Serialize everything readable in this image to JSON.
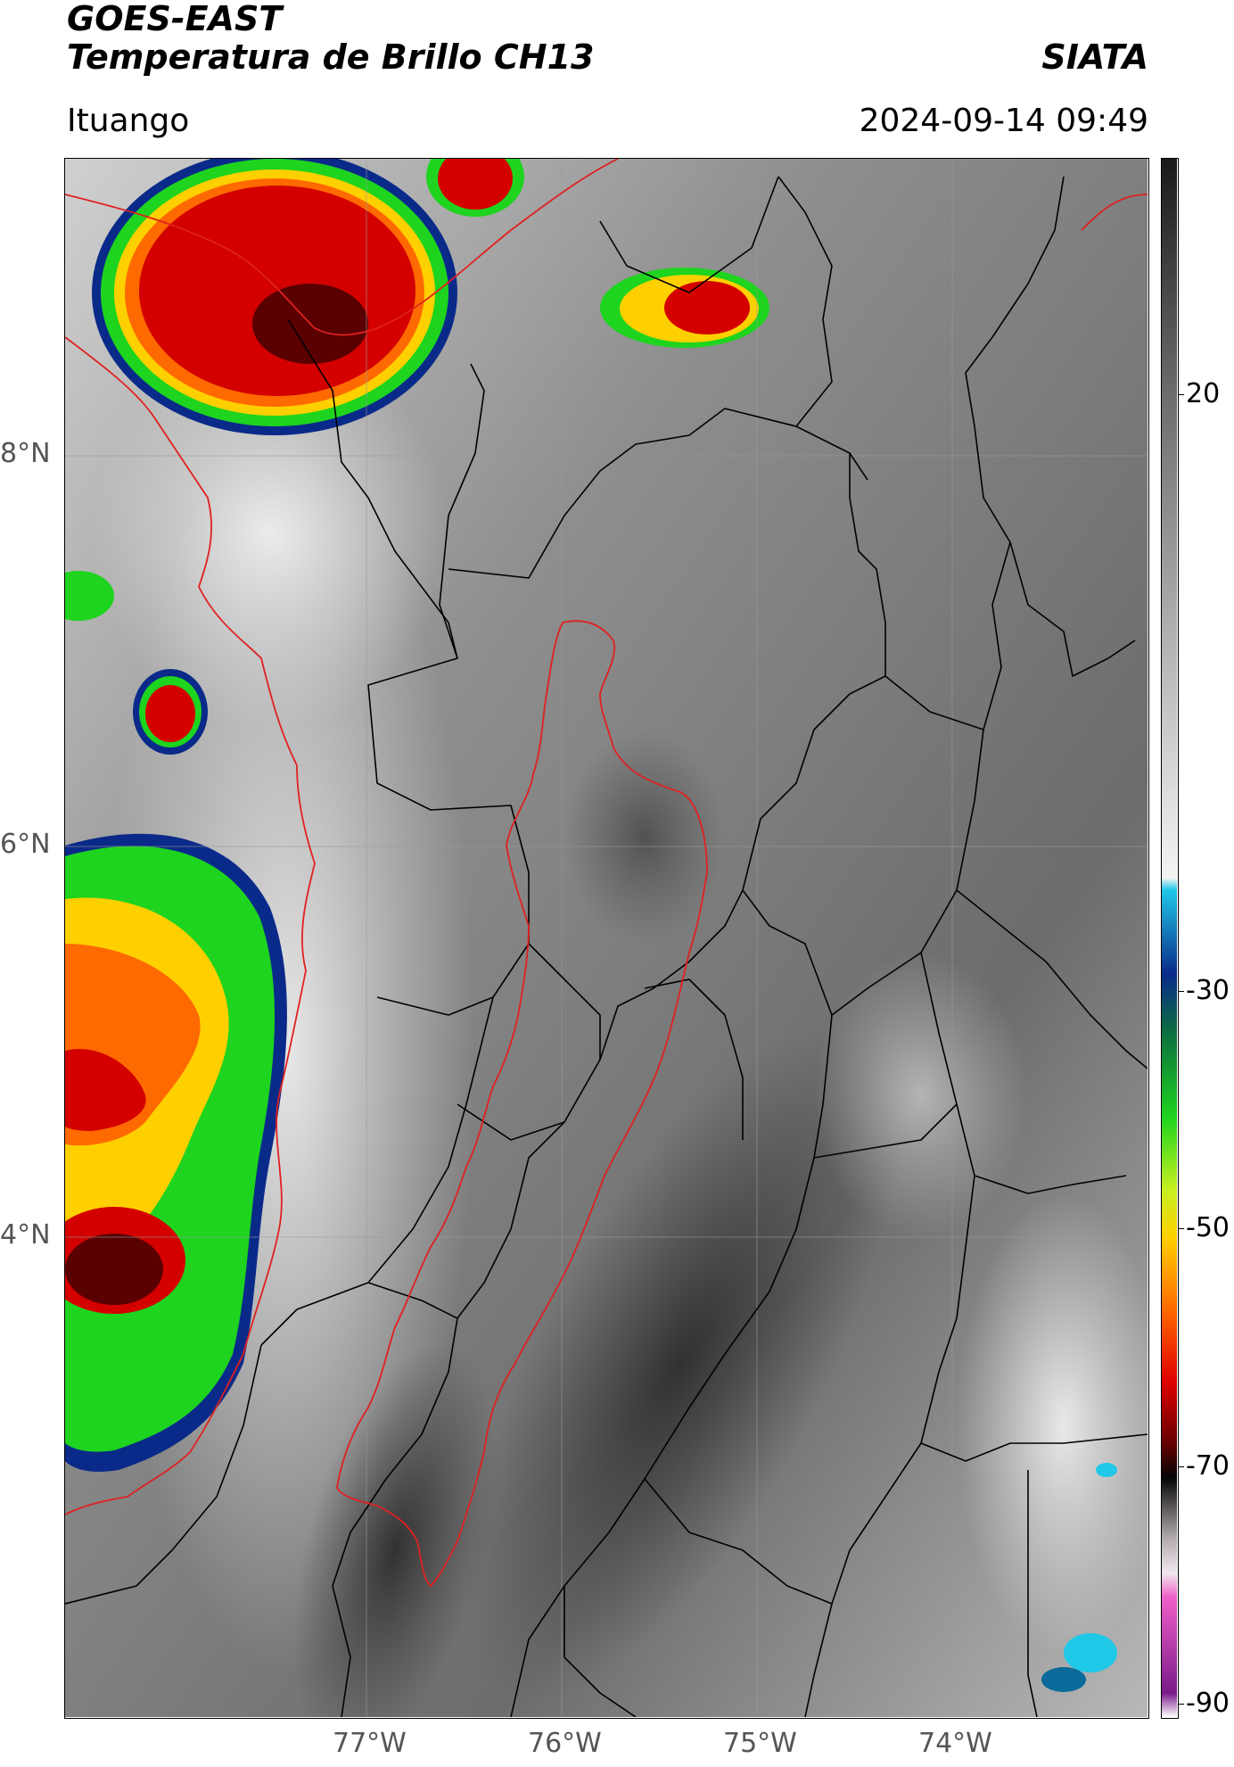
{
  "header": {
    "title_line1": "GOES-EAST",
    "title_line2": "Temperatura de Brillo CH13",
    "brand": "SIATA",
    "region": "Ituango",
    "timestamp": "2024-09-14 09:49"
  },
  "map": {
    "lat_labels": [
      {
        "value": 8,
        "text": "8°N"
      },
      {
        "value": 6,
        "text": "6°N"
      },
      {
        "value": 4,
        "text": "4°N"
      }
    ],
    "lon_labels": [
      {
        "value": -77,
        "text": "77°W"
      },
      {
        "value": -76,
        "text": "76°W"
      },
      {
        "value": -75,
        "text": "75°W"
      },
      {
        "value": -74,
        "text": "74°W"
      }
    ],
    "extent": {
      "lon_min": -78.55,
      "lon_max": -73.0,
      "lat_min": 1.55,
      "lat_max": 9.55
    },
    "colors": {
      "grid": "#9a9a9a",
      "borders": "#000000",
      "coastline_basin": "#e02020",
      "background_gray": "#8a8a8a"
    }
  },
  "colorbar": {
    "range": [
      -90,
      40
    ],
    "ticks": [
      {
        "value": 20,
        "text": "20"
      },
      {
        "value": -30,
        "text": "-30"
      },
      {
        "value": -50,
        "text": "-50"
      },
      {
        "value": -70,
        "text": "-70"
      },
      {
        "value": -90,
        "text": "-90"
      }
    ],
    "stops": [
      {
        "value": 40,
        "color": "#1a1a1a"
      },
      {
        "value": 20,
        "color": "#6e6e6e"
      },
      {
        "value": -20,
        "color": "#f4f4f4"
      },
      {
        "value": -21,
        "color": "#20c8e8"
      },
      {
        "value": -28,
        "color": "#0a2a8a"
      },
      {
        "value": -33,
        "color": "#0c7040"
      },
      {
        "value": -40,
        "color": "#1ed41e"
      },
      {
        "value": -46,
        "color": "#c8f020"
      },
      {
        "value": -50,
        "color": "#ffd000"
      },
      {
        "value": -56,
        "color": "#ff6a00"
      },
      {
        "value": -62,
        "color": "#e00000"
      },
      {
        "value": -67,
        "color": "#6a0000"
      },
      {
        "value": -70,
        "color": "#050505"
      },
      {
        "value": -75,
        "color": "#b0a8ac"
      },
      {
        "value": -78,
        "color": "#f0e8ee"
      },
      {
        "value": -80,
        "color": "#f060c8"
      },
      {
        "value": -88,
        "color": "#7a1a8a"
      },
      {
        "value": -90,
        "color": "#ffffff"
      }
    ]
  }
}
